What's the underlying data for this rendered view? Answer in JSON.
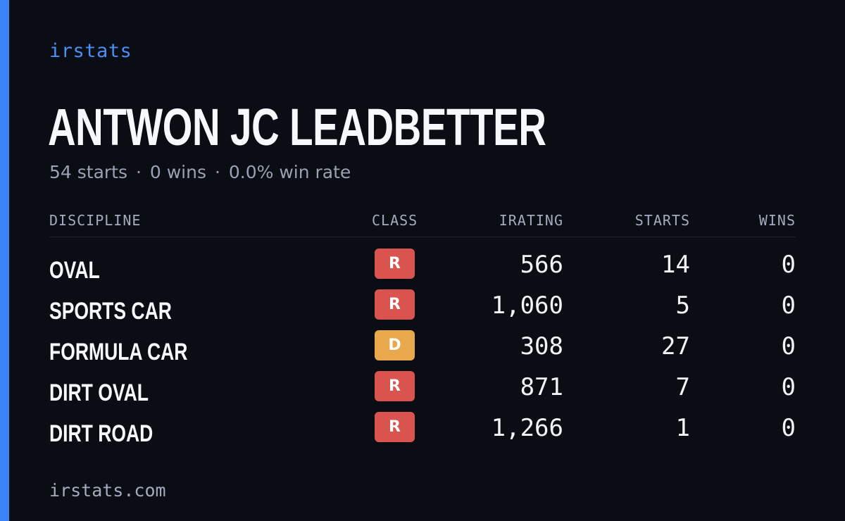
{
  "brand": "irstats",
  "driver_name": "ANTWON JC LEADBETTER",
  "summary": {
    "starts": "54 starts",
    "wins": "0 wins",
    "win_rate": "0.0% win rate",
    "separator": "·"
  },
  "table": {
    "headers": {
      "discipline": "DISCIPLINE",
      "class": "CLASS",
      "irating": "IRATING",
      "starts": "STARTS",
      "wins": "WINS"
    },
    "rows": [
      {
        "discipline": "OVAL",
        "class": "R",
        "class_color": "#d9534f",
        "irating": "566",
        "starts": "14",
        "wins": "0"
      },
      {
        "discipline": "SPORTS CAR",
        "class": "R",
        "class_color": "#d9534f",
        "irating": "1,060",
        "starts": "5",
        "wins": "0"
      },
      {
        "discipline": "FORMULA CAR",
        "class": "D",
        "class_color": "#e9a84b",
        "irating": "308",
        "starts": "27",
        "wins": "0"
      },
      {
        "discipline": "DIRT OVAL",
        "class": "R",
        "class_color": "#d9534f",
        "irating": "871",
        "starts": "7",
        "wins": "0"
      },
      {
        "discipline": "DIRT ROAD",
        "class": "R",
        "class_color": "#d9534f",
        "irating": "1,266",
        "starts": "1",
        "wins": "0"
      }
    ]
  },
  "footer": "irstats.com",
  "colors": {
    "background": "#0b0d14",
    "accent": "#3b82f6",
    "brand": "#4b8ef5",
    "muted_text": "#9aa1b3"
  }
}
